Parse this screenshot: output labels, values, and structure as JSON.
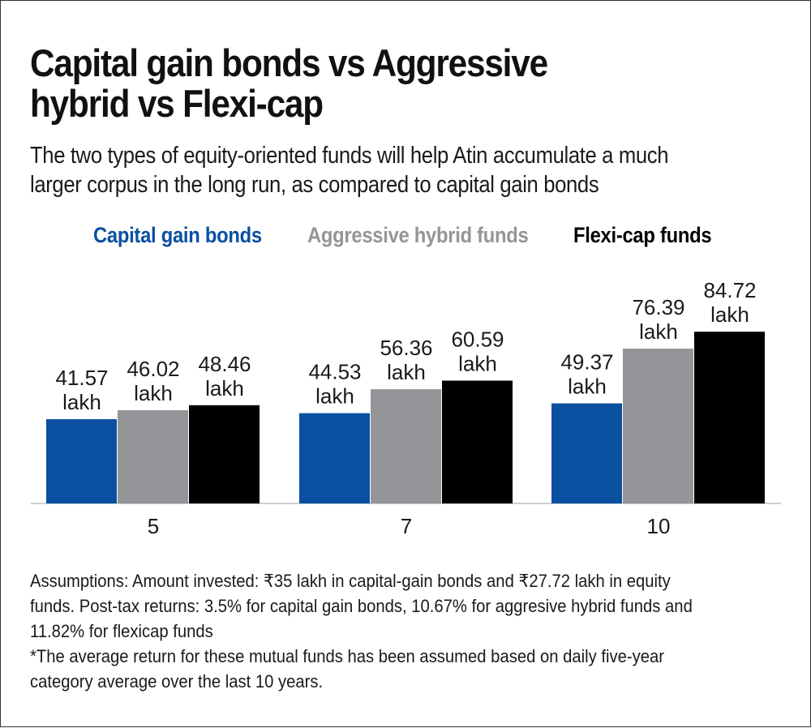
{
  "chart_data": {
    "type": "bar",
    "title": [
      "Capital gain bonds vs Aggressive",
      "hybrid vs Flexi-cap"
    ],
    "subtitle": [
      "The two types of equity-oriented funds will help Atin accumulate a much",
      "larger corpus in the long run, as compared to capital gain bonds"
    ],
    "categories": [
      "5",
      "7",
      "10"
    ],
    "series": [
      {
        "name": "Capital gain bonds",
        "color": "#0a4fa0",
        "values": [
          41.57,
          44.53,
          49.37
        ],
        "labels": [
          "41.57",
          "44.53",
          "49.37"
        ]
      },
      {
        "name": "Aggressive hybrid funds",
        "color": "#939598",
        "values": [
          46.02,
          56.36,
          76.39
        ],
        "labels": [
          "46.02",
          "56.36",
          "76.39"
        ]
      },
      {
        "name": "Flexi-cap funds",
        "color": "#000000",
        "values": [
          48.46,
          60.59,
          84.72
        ],
        "labels": [
          "48.46",
          "60.59",
          "84.72"
        ]
      }
    ],
    "unit_label": "lakh",
    "xlabel": "",
    "ylabel": "",
    "legend": "top",
    "grid": false
  },
  "footnote": [
    "Assumptions: Amount invested: ₹35 lakh in capital-gain bonds and ₹27.72 lakh in equity",
    "funds. Post-tax returns: 3.5% for capital gain bonds, 10.67% for aggresive hybrid funds and",
    "11.82% for flexicap funds",
    "*The average return for these mutual funds has been assumed based on daily five-year",
    "category average over the last 10 years."
  ]
}
